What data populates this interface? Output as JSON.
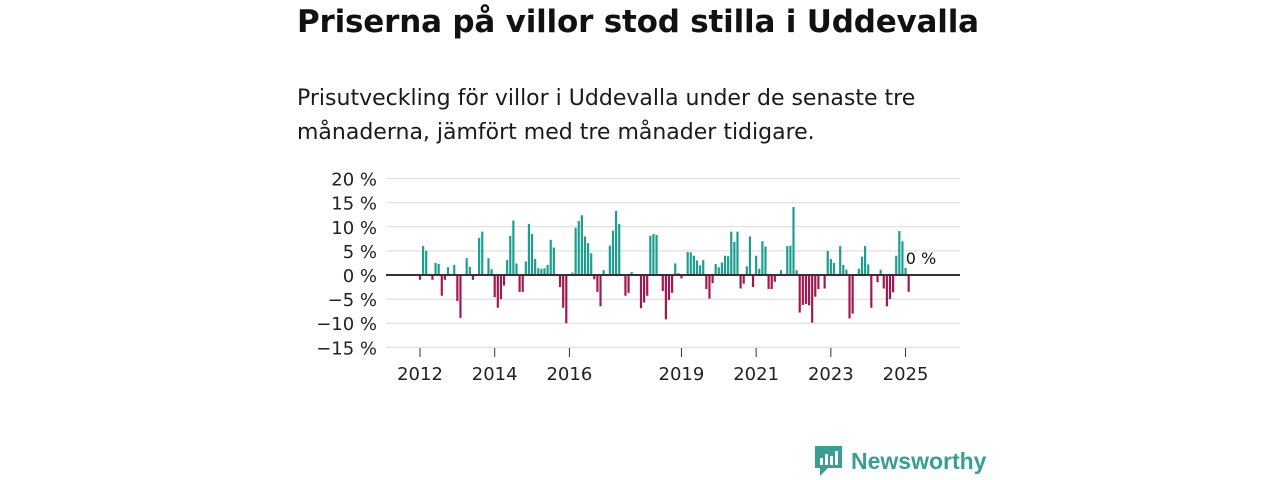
{
  "header": {
    "title": "Priserna på villor stod stilla i Uddevalla",
    "subtitle": "Prisutveckling för villor i Uddevalla under de senaste tre månaderna, jämfört med tre månader tidigare."
  },
  "logo": {
    "text": "Newsworthy",
    "icon": "newsworthy-logo-icon",
    "color": "#3a9e94"
  },
  "colors": {
    "positive": "#1a9e8f",
    "negative": "#a3164e",
    "grid": "#d9d9d9",
    "zero": "#333333"
  },
  "chart_data": {
    "type": "bar",
    "title": "",
    "xlabel": "",
    "ylabel": "",
    "ylim": [
      -15,
      20
    ],
    "y_ticks": [
      20,
      15,
      10,
      5,
      0,
      -5,
      -10,
      -15
    ],
    "y_tick_labels": [
      "20 %",
      "15 %",
      "10 %",
      "5 %",
      "0 %",
      "−5 %",
      "−10 %",
      "−15 %"
    ],
    "x_ticks": [
      2012,
      2014,
      2016,
      2019,
      2021,
      2023,
      2025
    ],
    "x_tick_labels": [
      "2012",
      "2014",
      "2016",
      "2019",
      "2021",
      "2023",
      "2025"
    ],
    "x_start": 2012.0,
    "x_step": 0.0833333,
    "last_value_label": "0 %",
    "values": [
      -1,
      6,
      5,
      0,
      -1,
      2.5,
      2.3,
      -4.3,
      -1,
      1.6,
      0,
      2.1,
      -5.4,
      -8.9,
      0,
      3.5,
      1.7,
      -1,
      0,
      7.7,
      9,
      0,
      3.5,
      1.2,
      -4.6,
      -6.8,
      -5,
      -2.2,
      3.1,
      8.1,
      11.3,
      2.4,
      -3.5,
      -3.5,
      2.8,
      10.6,
      8.5,
      3.3,
      1.4,
      1.3,
      1.4,
      2.1,
      7.3,
      5.7,
      0,
      -2.5,
      -6.8,
      -10,
      0,
      0.5,
      9.8,
      11.2,
      12.4,
      8,
      6.6,
      4.5,
      -0.9,
      -3.5,
      -6.5,
      1,
      0,
      6.1,
      9.2,
      13.3,
      10.6,
      0,
      -4.3,
      -3.7,
      0.6,
      0,
      0,
      -6.9,
      -5.7,
      -4.3,
      8.1,
      8.5,
      8.3,
      0,
      -3.3,
      -9.2,
      -5.2,
      -3.7,
      2.4,
      0.4,
      -0.7,
      0,
      4.8,
      4.7,
      4,
      3,
      2,
      3.1,
      -2.9,
      -4.9,
      -1.7,
      2.3,
      1.6,
      2.6,
      4,
      3.9,
      9,
      6.9,
      9,
      -2.8,
      -1.8,
      1.8,
      8,
      -2.5,
      4,
      1.3,
      7,
      5.9,
      -2.9,
      -2.9,
      -1.4,
      0,
      1,
      0,
      6,
      6.1,
      14.1,
      1,
      -7.8,
      -6.2,
      -6,
      -6.3,
      -9.9,
      -4.5,
      -2.9,
      0,
      -2.8,
      5,
      3.3,
      2.5,
      0,
      6,
      2.1,
      1.1,
      -9,
      -8,
      0,
      1.3,
      3.8,
      6,
      2.2,
      -6.8,
      0,
      -1.5,
      1.1,
      -2.8,
      -6.5,
      -5,
      -3.6,
      4,
      9.1,
      7,
      1.5,
      -3.5,
      0
    ]
  }
}
